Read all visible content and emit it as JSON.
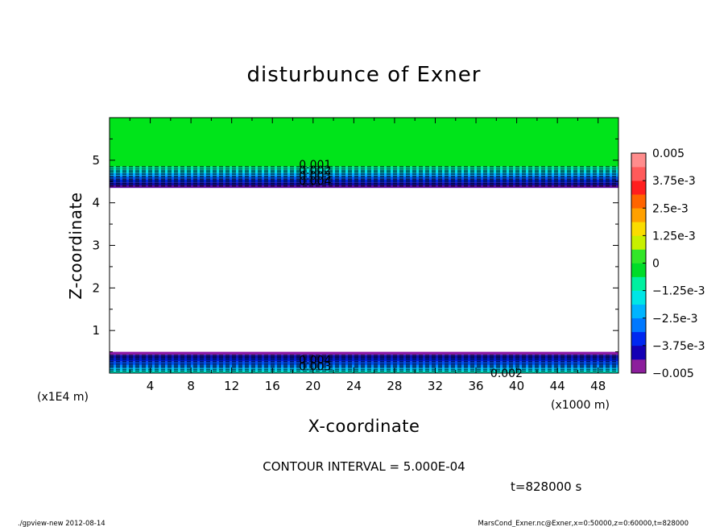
{
  "chart_data": {
    "type": "heatmap",
    "title": "disturbunce of Exner",
    "xlabel": "X-coordinate",
    "ylabel": "Z-coordinate",
    "x_unit": "(x1000 m)",
    "y_unit": "(x1E4 m)",
    "xlim": [
      0,
      50
    ],
    "ylim": [
      0,
      6
    ],
    "x_ticks": [
      4,
      8,
      12,
      16,
      20,
      24,
      28,
      32,
      36,
      40,
      44,
      48
    ],
    "y_ticks": [
      1,
      2,
      3,
      4,
      5
    ],
    "bands": [
      {
        "z": [
          4.85,
          6.0
        ],
        "value": 0,
        "color": "#00e41a"
      },
      {
        "z": [
          4.78,
          4.85
        ],
        "value": -0.00075,
        "color": "#00e8a0"
      },
      {
        "z": [
          4.7,
          4.78
        ],
        "value": -0.0015,
        "color": "#00dcdc"
      },
      {
        "z": [
          4.62,
          4.7
        ],
        "value": -0.00225,
        "color": "#00a8ff"
      },
      {
        "z": [
          4.55,
          4.62
        ],
        "value": -0.003,
        "color": "#0060f0"
      },
      {
        "z": [
          4.48,
          4.55
        ],
        "value": -0.0035,
        "color": "#0028dc"
      },
      {
        "z": [
          4.41,
          4.48
        ],
        "value": -0.004,
        "color": "#1010b4"
      },
      {
        "z": [
          4.35,
          4.41
        ],
        "value": -0.0045,
        "color": "#5a0aa0"
      },
      {
        "z": [
          0.43,
          0.5
        ],
        "value": -0.0045,
        "color": "#8a1aa6"
      },
      {
        "z": [
          0.35,
          0.43
        ],
        "value": -0.004,
        "color": "#1414b4"
      },
      {
        "z": [
          0.27,
          0.35
        ],
        "value": -0.0035,
        "color": "#0020d8"
      },
      {
        "z": [
          0.19,
          0.27
        ],
        "value": -0.003,
        "color": "#0050f0"
      },
      {
        "z": [
          0.12,
          0.19
        ],
        "value": -0.0025,
        "color": "#0090ff"
      },
      {
        "z": [
          0.05,
          0.12
        ],
        "value": -0.0015,
        "color": "#00c8ee"
      },
      {
        "z": [
          0.0,
          0.05
        ],
        "value": -0.00075,
        "color": "#00e0c0"
      }
    ],
    "contour_levels_top": [
      4.85,
      4.81,
      4.77,
      4.74,
      4.7,
      4.67,
      4.63,
      4.6,
      4.56,
      4.53,
      4.49,
      4.46,
      4.42,
      4.39
    ],
    "contour_levels_bottom": [
      0.42,
      0.38,
      0.35,
      0.31,
      0.27,
      0.23,
      0.19,
      0.16,
      0.12,
      0.08,
      0.05
    ],
    "contour_labels": [
      {
        "text": "0.001",
        "x": 20.2,
        "z": 4.9
      },
      {
        "text": "0.002",
        "x": 20.2,
        "z": 4.77
      },
      {
        "text": "0.003",
        "x": 20.2,
        "z": 4.64
      },
      {
        "text": "0.004",
        "x": 20.2,
        "z": 4.51
      },
      {
        "text": "0.004",
        "x": 20.2,
        "z": 0.31
      },
      {
        "text": "0.003",
        "x": 20.2,
        "z": 0.16
      },
      {
        "text": "0.002",
        "x": 39.0,
        "z": 0.0
      }
    ],
    "colorbar": {
      "colors": [
        "#8c1e9c",
        "#1400b4",
        "#0028f0",
        "#0078ff",
        "#00b4ff",
        "#00e6e6",
        "#00f0a0",
        "#00dc28",
        "#32e628",
        "#c8f000",
        "#fadc00",
        "#ffa000",
        "#ff6400",
        "#ff1e1e",
        "#ff5a5a",
        "#ff8c8c"
      ],
      "labels": [
        "0.005",
        "3.75e-3",
        "2.5e-3",
        "1.25e-3",
        "0",
        "−1.25e-3",
        "−2.5e-3",
        "−3.75e-3",
        "−0.005"
      ]
    }
  },
  "caption": {
    "contour_interval": "CONTOUR INTERVAL = 5.000E-04",
    "time": "t=828000 s"
  },
  "footer": {
    "left": "./gpview-new  2012-08-14",
    "right": "MarsCond_Exner.nc@Exner,x=0:50000,z=0:60000,t=828000"
  }
}
